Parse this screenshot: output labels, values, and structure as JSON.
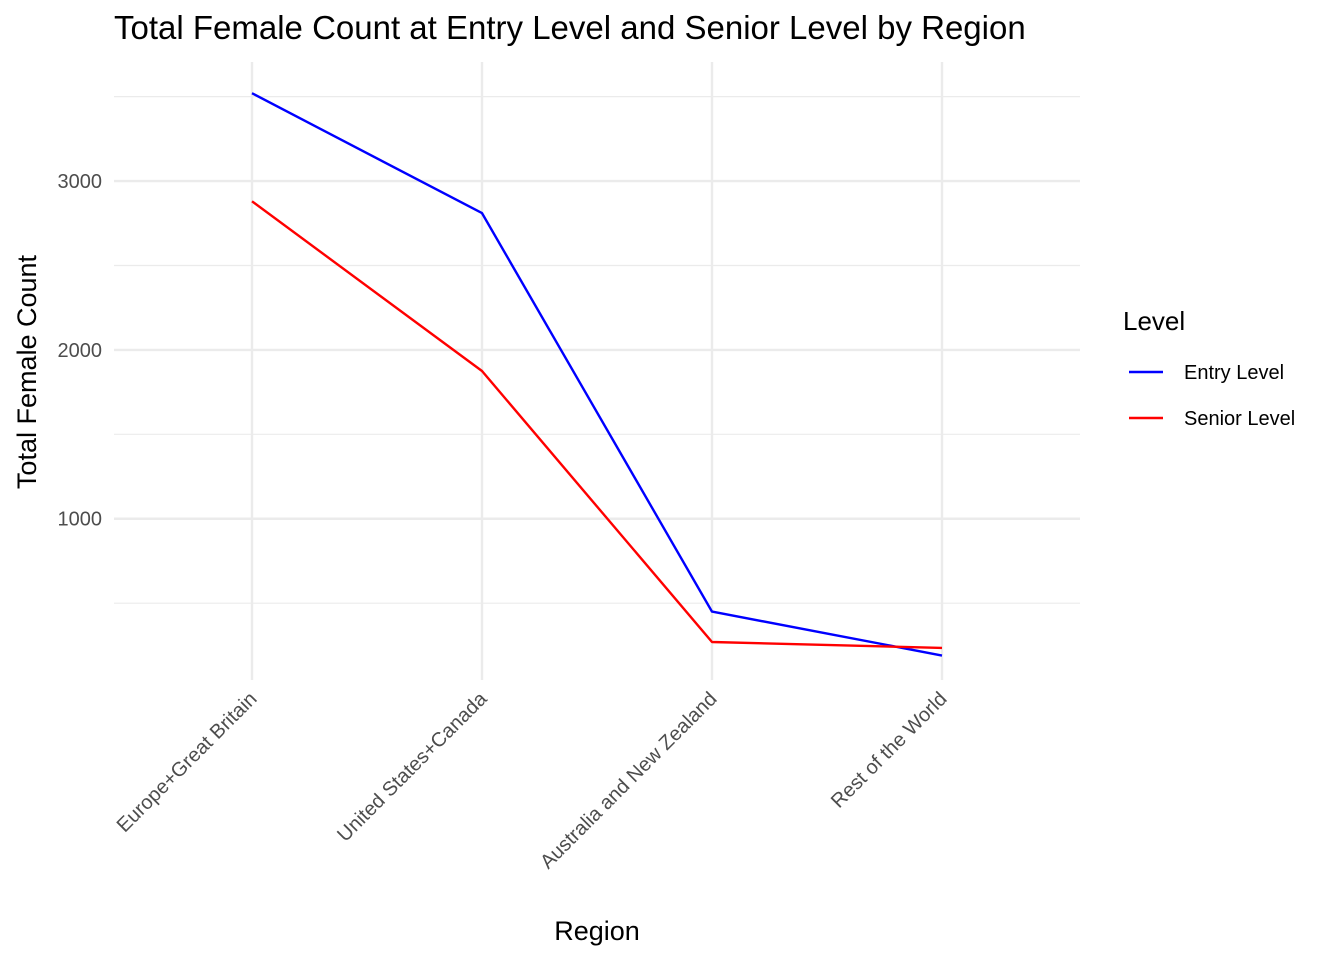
{
  "chart_data": {
    "type": "line",
    "title": "Total Female Count at Entry Level and Senior Level by Region",
    "xlabel": "Region",
    "ylabel": "Total Female Count",
    "categories": [
      "Europe+Great Britain",
      "United States+Canada",
      "Australia and New Zealand",
      "Rest of the World"
    ],
    "yticks": [
      1000,
      2000,
      3000
    ],
    "ylim": [
      45,
      3705
    ],
    "grid": true,
    "legend": {
      "title": "Level",
      "position": "right"
    },
    "series": [
      {
        "name": "Entry Level",
        "color": "#0000ff",
        "values": [
          3520,
          2810,
          450,
          190
        ]
      },
      {
        "name": "Senior Level",
        "color": "#ff0000",
        "values": [
          2880,
          1875,
          270,
          235
        ]
      }
    ]
  }
}
